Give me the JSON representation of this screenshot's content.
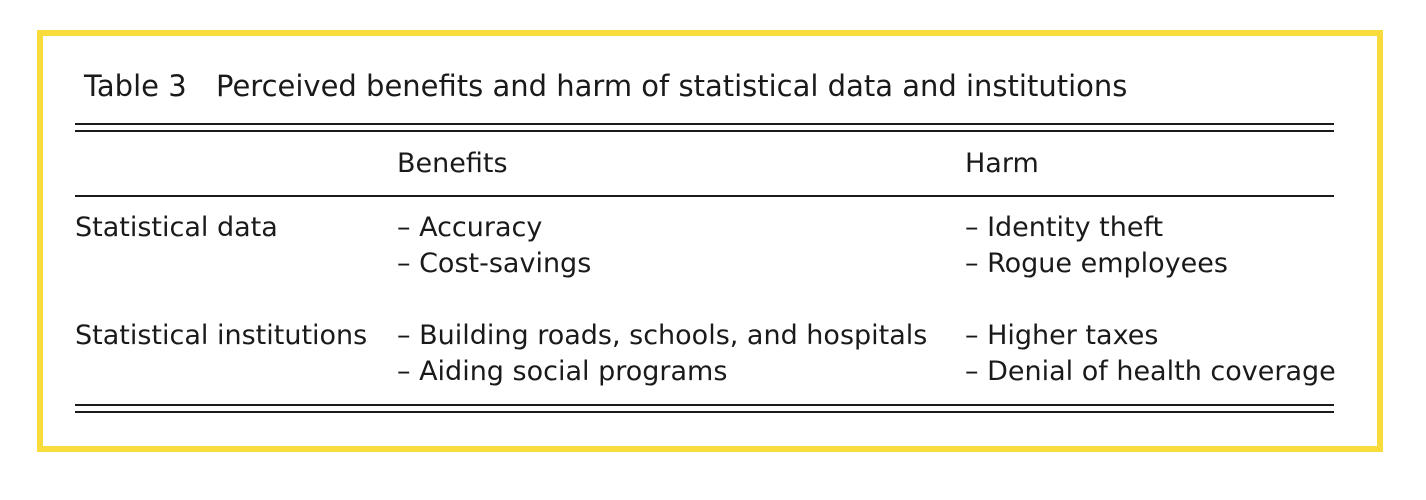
{
  "table": {
    "label": "Table 3",
    "title": "Perceived benefits and harm of statistical data and institutions",
    "columns": [
      "",
      "Benefits",
      "Harm"
    ],
    "rows": [
      {
        "header": "Statistical data",
        "benefits": [
          "– Accuracy",
          "– Cost-savings"
        ],
        "harm": [
          "– Identity theft",
          "– Rogue employees"
        ]
      },
      {
        "header": "Statistical institutions",
        "benefits": [
          "– Building roads, schools, and hospitals",
          "– Aiding social programs"
        ],
        "harm": [
          "– Higher taxes",
          "– Denial of health coverage"
        ]
      }
    ]
  },
  "colors": {
    "frame_border": "#f7dc3c",
    "text": "#1a1a1a"
  }
}
